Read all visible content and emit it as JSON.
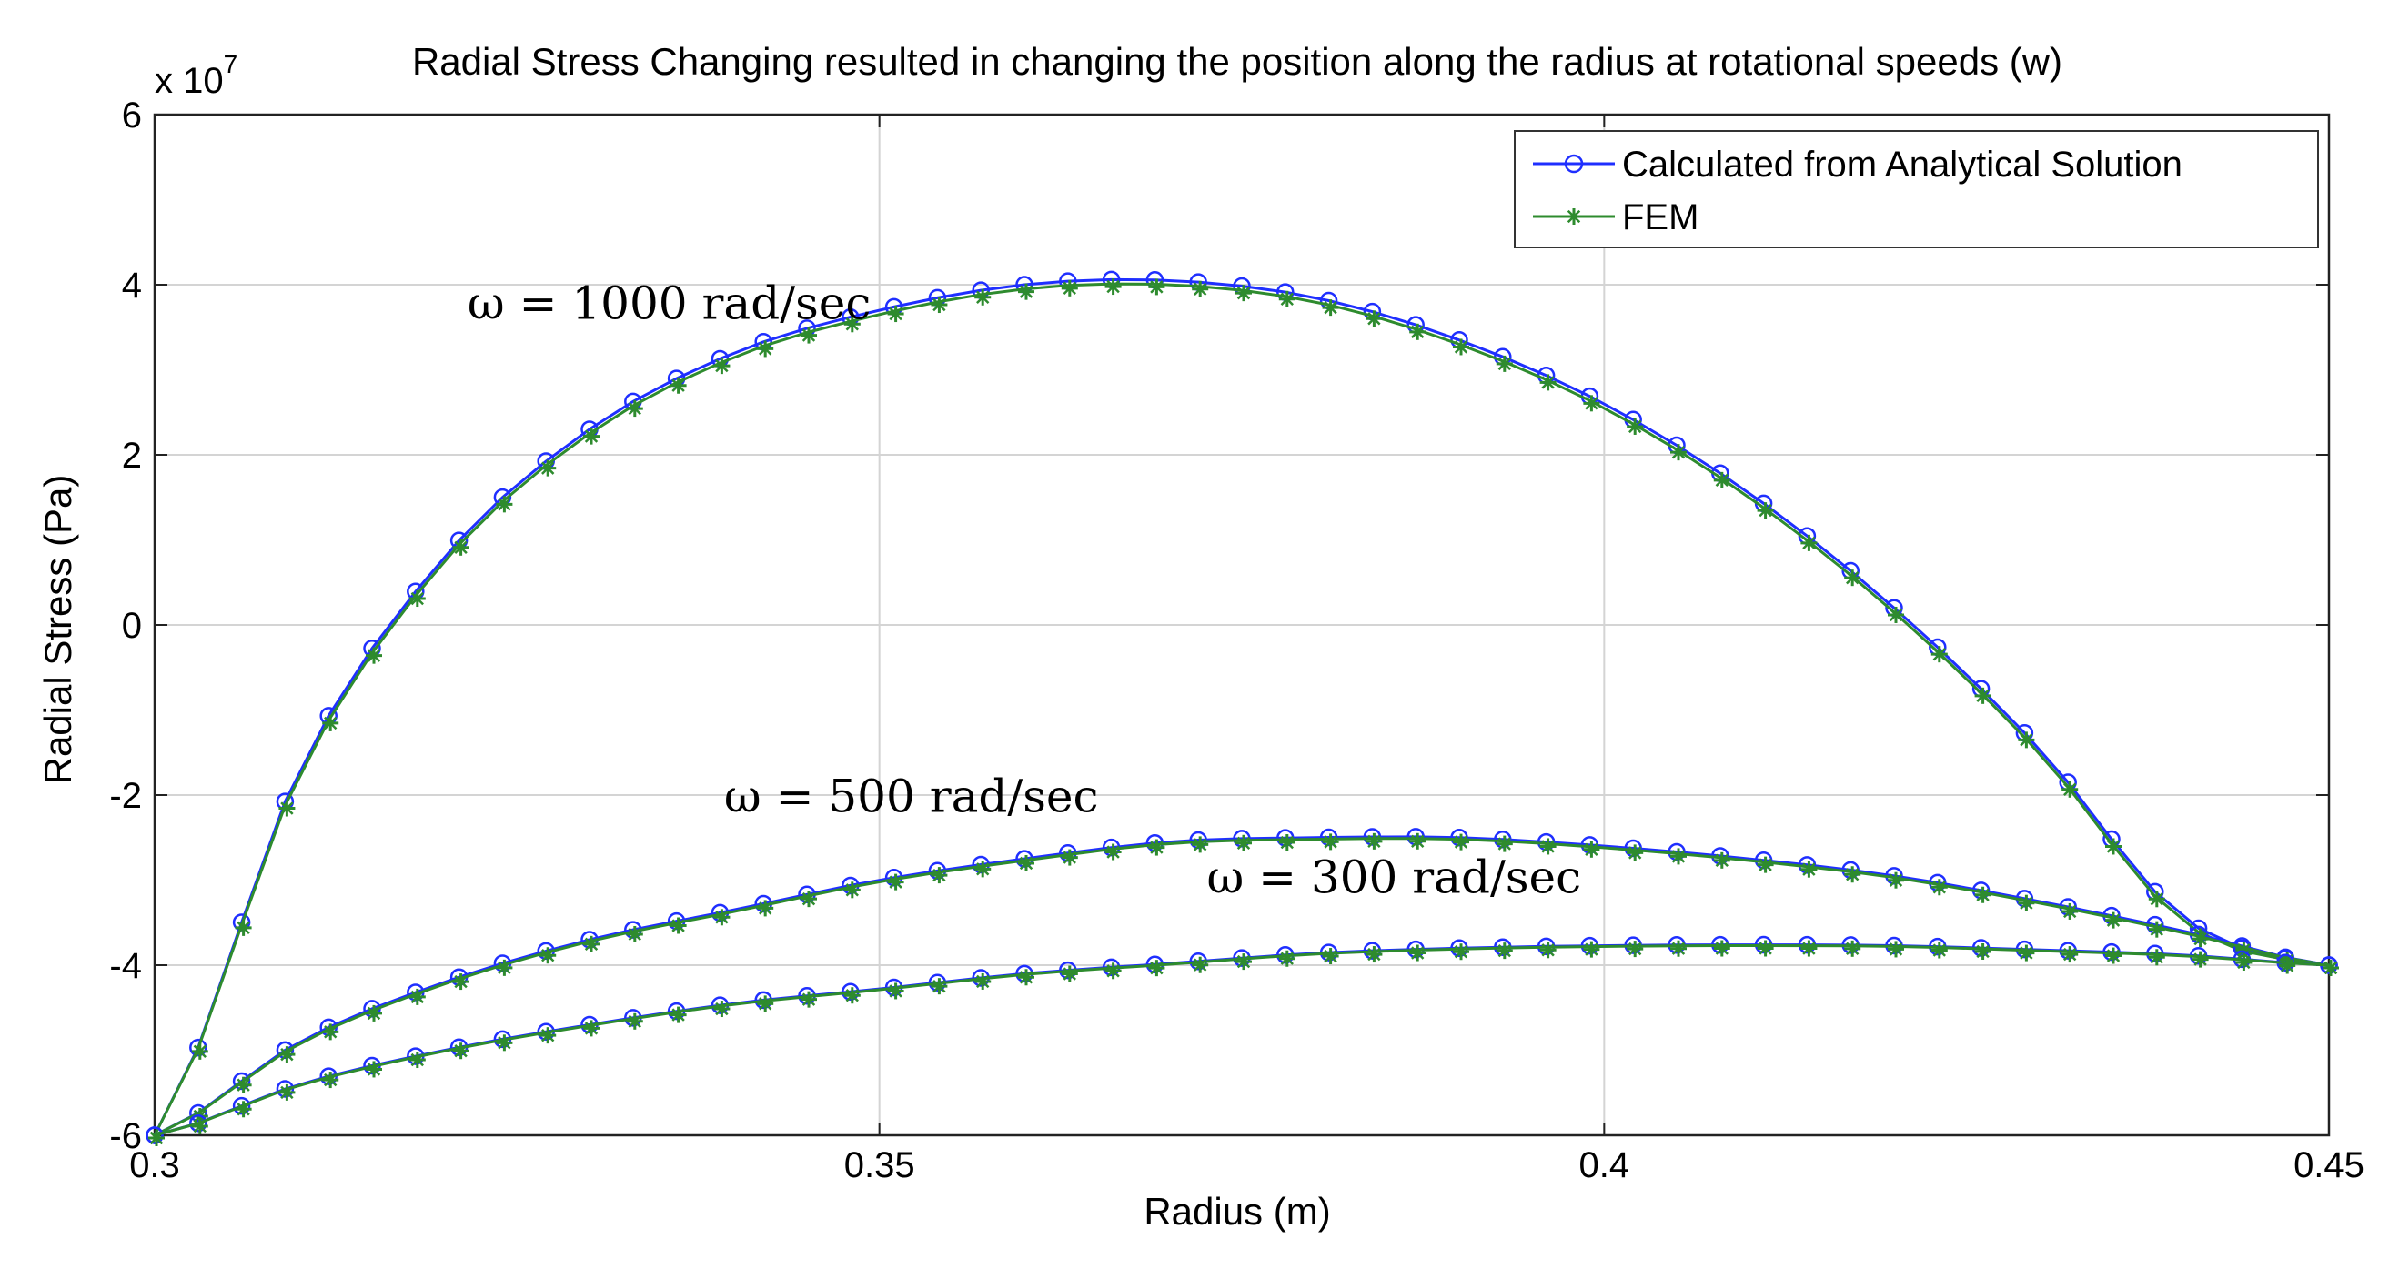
{
  "chart_data": {
    "type": "line",
    "title": "Radial Stress Changing resulted in changing the position along the radius at rotational speeds (w)",
    "xlabel": "Radius (m)",
    "ylabel": "Radial Stress (Pa)",
    "y_exponent_label": "x 10",
    "y_exponent_power": "7",
    "xlim": [
      0.3,
      0.45
    ],
    "ylim": [
      -6,
      6
    ],
    "y_scale": "x 10^7 Pa",
    "x_ticks": [
      0.3,
      0.35,
      0.4,
      0.45
    ],
    "x_tick_labels": [
      "0.3",
      "0.35",
      "0.4",
      "0.45"
    ],
    "y_ticks": [
      -6,
      -4,
      -2,
      0,
      2,
      4,
      6
    ],
    "y_tick_labels": [
      "-6",
      "-4",
      "-2",
      "0",
      "2",
      "4",
      "6"
    ],
    "grid": true,
    "legend_position": "top-right",
    "legend": [
      {
        "name": "Calculated from Analytical Solution",
        "color": "#1f2fff",
        "marker": "circle"
      },
      {
        "name": "FEM",
        "color": "#2e8b2e",
        "marker": "star"
      }
    ],
    "annotations": [
      {
        "text": "ω = 1000 rad/sec",
        "series": "1000",
        "x": 0.3355,
        "y": 3.6
      },
      {
        "text": "ω = 500 rad/sec",
        "series": "500",
        "x": 0.3522,
        "y": -2.2
      },
      {
        "text": "ω = 300 rad/sec",
        "series": "300",
        "x": 0.3855,
        "y": -3.15
      }
    ],
    "series": [
      {
        "name": "ω = 1000 rad/sec",
        "x": [
          0.3,
          0.31,
          0.32,
          0.33,
          0.34,
          0.35,
          0.36,
          0.37,
          0.38,
          0.39,
          0.4,
          0.41,
          0.42,
          0.43,
          0.44,
          0.45
        ],
        "analytical": [
          -6.0,
          -1.7,
          0.8,
          2.3,
          3.2,
          3.7,
          4.0,
          4.05,
          3.85,
          3.35,
          2.6,
          1.55,
          0.2,
          -1.45,
          -3.45,
          -4.0
        ],
        "fem": [
          -6.0,
          -1.75,
          0.75,
          2.25,
          3.15,
          3.65,
          3.95,
          4.0,
          3.8,
          3.3,
          2.55,
          1.5,
          0.15,
          -1.5,
          -3.5,
          -4.0
        ]
      },
      {
        "name": "ω = 500 rad/sec",
        "x": [
          0.3,
          0.31,
          0.32,
          0.33,
          0.34,
          0.35,
          0.36,
          0.37,
          0.38,
          0.39,
          0.4,
          0.41,
          0.42,
          0.43,
          0.44,
          0.45
        ],
        "analytical": [
          -6.0,
          -4.9,
          -4.2,
          -3.7,
          -3.35,
          -3.0,
          -2.75,
          -2.55,
          -2.5,
          -2.5,
          -2.6,
          -2.75,
          -2.95,
          -3.25,
          -3.6,
          -4.0
        ],
        "fem": [
          -6.0,
          -4.92,
          -4.22,
          -3.72,
          -3.37,
          -3.02,
          -2.77,
          -2.57,
          -2.52,
          -2.52,
          -2.62,
          -2.77,
          -2.97,
          -3.27,
          -3.62,
          -4.0
        ]
      },
      {
        "name": "ω = 300 rad/sec",
        "x": [
          0.3,
          0.31,
          0.32,
          0.33,
          0.34,
          0.35,
          0.36,
          0.37,
          0.38,
          0.39,
          0.4,
          0.41,
          0.42,
          0.43,
          0.44,
          0.45
        ],
        "analytical": [
          -6.0,
          -5.4,
          -5.0,
          -4.7,
          -4.45,
          -4.28,
          -4.1,
          -3.98,
          -3.86,
          -3.8,
          -3.77,
          -3.76,
          -3.77,
          -3.82,
          -3.88,
          -4.0
        ],
        "fem": [
          -6.0,
          -5.41,
          -5.01,
          -4.71,
          -4.46,
          -4.29,
          -4.11,
          -3.99,
          -3.87,
          -3.81,
          -3.78,
          -3.77,
          -3.78,
          -3.83,
          -3.89,
          -4.0
        ]
      }
    ]
  }
}
